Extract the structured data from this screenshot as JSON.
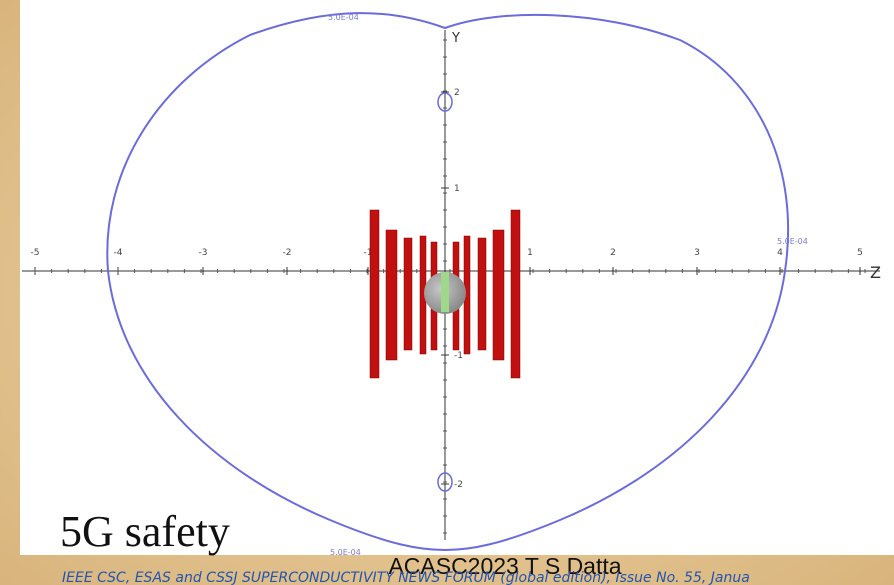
{
  "slide": {
    "title": "5G safety",
    "footer": "ACASC2023 T S Datta",
    "citation": "IEEE CSC, ESAS and CSSJ SUPERCONDUCTIVITY NEWS FORUM (global edition), Issue No. 55, Janua",
    "plot": {
      "z_axis_label": "Z",
      "y_axis_label": "Y",
      "z_ticks": [
        "-5",
        "-4",
        "-3",
        "-2",
        "-1",
        "1",
        "2",
        "3",
        "4",
        "5"
      ],
      "y_ticks": [
        "2",
        "1",
        "-1",
        "-2"
      ],
      "contour_labels": [
        "5.0E-04",
        "5.0E-04",
        "5.0E-04"
      ]
    }
  }
}
